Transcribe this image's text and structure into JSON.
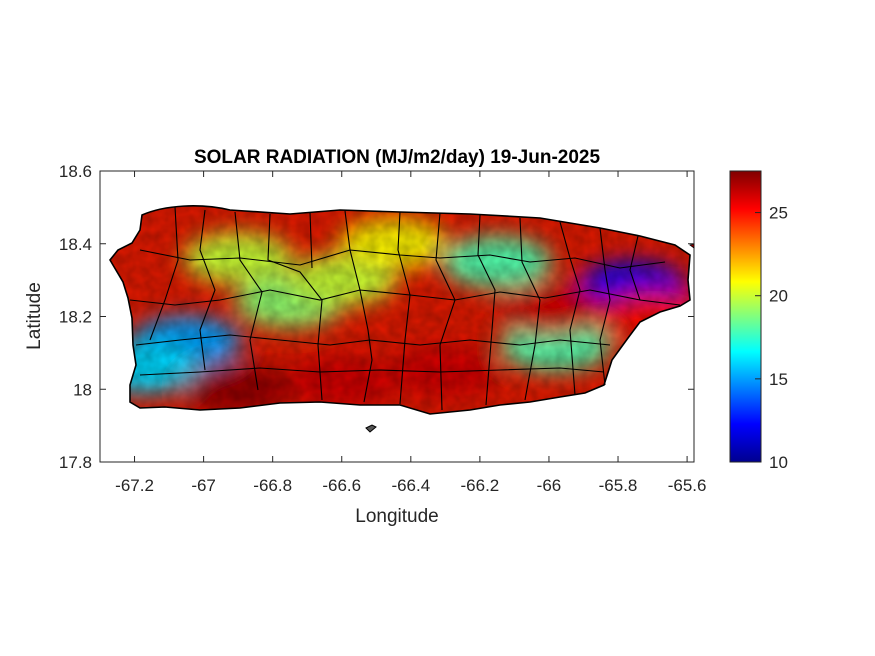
{
  "chart_data": {
    "type": "heatmap",
    "title": "SOLAR RADIATION (MJ/m2/day) 19-Jun-2025",
    "xlabel": "Longitude",
    "ylabel": "Latitude",
    "xlim": [
      -67.3,
      -65.58
    ],
    "ylim": [
      17.8,
      18.6
    ],
    "x_ticks": [
      "-67.2",
      "-67",
      "-66.8",
      "-66.6",
      "-66.4",
      "-66.2",
      "-66",
      "-65.8",
      "-65.6"
    ],
    "y_ticks": [
      "17.8",
      "18",
      "18.2",
      "18.4",
      "18.6"
    ],
    "colorbar": {
      "min": 10,
      "max": 27.5,
      "ticks": [
        "10",
        "15",
        "20",
        "25"
      ],
      "colormap": "jet"
    },
    "grid": false,
    "region": "Puerto Rico, with municipality boundaries",
    "zones": [
      {
        "lon": -67.05,
        "lat": 18.13,
        "value": 15
      },
      {
        "lon": -67.17,
        "lat": 18.06,
        "value": 16
      },
      {
        "lon": -66.75,
        "lat": 18.24,
        "value": 19
      },
      {
        "lon": -66.9,
        "lat": 18.36,
        "value": 20
      },
      {
        "lon": -66.6,
        "lat": 18.3,
        "value": 20
      },
      {
        "lon": -66.45,
        "lat": 18.4,
        "value": 21
      },
      {
        "lon": -66.15,
        "lat": 18.35,
        "value": 18
      },
      {
        "lon": -65.98,
        "lat": 18.12,
        "value": 18
      },
      {
        "lon": -65.76,
        "lat": 18.28,
        "value": 12
      },
      {
        "lon": -66.6,
        "lat": 18.02,
        "value": 26
      },
      {
        "lon": -66.9,
        "lat": 18.0,
        "value": 27
      },
      {
        "lon": -66.3,
        "lat": 18.05,
        "value": 26
      },
      {
        "lon": -66.0,
        "lat": 18.22,
        "value": 26
      },
      {
        "lon": -65.7,
        "lat": 18.2,
        "value": 25
      }
    ]
  },
  "colors": {
    "jet": [
      "#00008f",
      "#0000ff",
      "#00ffff",
      "#ffff00",
      "#ff0000",
      "#800000"
    ],
    "boundary": "#000000"
  }
}
